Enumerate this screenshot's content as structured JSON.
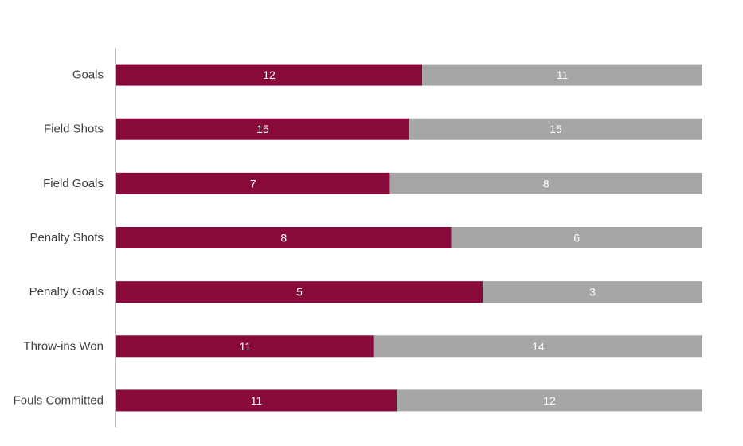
{
  "chart_data": {
    "type": "bar",
    "orientation": "horizontal",
    "stacking": "percent",
    "categories": [
      "Goals",
      "Field Shots",
      "Field Goals",
      "Penalty Shots",
      "Penalty Goals",
      "Throw-ins Won",
      "Fouls Committed"
    ],
    "series": [
      {
        "values": [
          12,
          15,
          7,
          8,
          5,
          11,
          11
        ],
        "color": "#880a3a"
      },
      {
        "values": [
          11,
          15,
          8,
          6,
          3,
          14,
          12
        ],
        "color": "#a6a6a6"
      }
    ],
    "data_labels": true,
    "legend": "none",
    "grid": false
  }
}
